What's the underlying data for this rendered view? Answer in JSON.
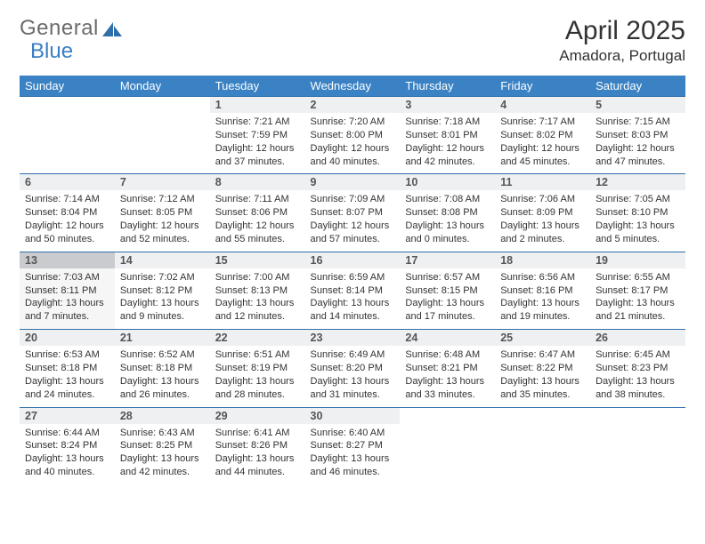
{
  "brand": {
    "part1": "General",
    "part2": "Blue"
  },
  "title": "April 2025",
  "location": "Amadora, Portugal",
  "colors": {
    "header_bg": "#3a82c4",
    "header_text": "#ffffff",
    "daynum_bg": "#eef0f2",
    "daynum_border": "#2f6fa8",
    "today_daynum_bg": "#c9cbce",
    "logo_gray": "#6b6b6b",
    "logo_blue": "#3a7fc4"
  },
  "weekdays": [
    "Sunday",
    "Monday",
    "Tuesday",
    "Wednesday",
    "Thursday",
    "Friday",
    "Saturday"
  ],
  "today": 13,
  "weeks": [
    [
      null,
      null,
      {
        "n": 1,
        "sr": "7:21 AM",
        "ss": "7:59 PM",
        "dl": "12 hours and 37 minutes."
      },
      {
        "n": 2,
        "sr": "7:20 AM",
        "ss": "8:00 PM",
        "dl": "12 hours and 40 minutes."
      },
      {
        "n": 3,
        "sr": "7:18 AM",
        "ss": "8:01 PM",
        "dl": "12 hours and 42 minutes."
      },
      {
        "n": 4,
        "sr": "7:17 AM",
        "ss": "8:02 PM",
        "dl": "12 hours and 45 minutes."
      },
      {
        "n": 5,
        "sr": "7:15 AM",
        "ss": "8:03 PM",
        "dl": "12 hours and 47 minutes."
      }
    ],
    [
      {
        "n": 6,
        "sr": "7:14 AM",
        "ss": "8:04 PM",
        "dl": "12 hours and 50 minutes."
      },
      {
        "n": 7,
        "sr": "7:12 AM",
        "ss": "8:05 PM",
        "dl": "12 hours and 52 minutes."
      },
      {
        "n": 8,
        "sr": "7:11 AM",
        "ss": "8:06 PM",
        "dl": "12 hours and 55 minutes."
      },
      {
        "n": 9,
        "sr": "7:09 AM",
        "ss": "8:07 PM",
        "dl": "12 hours and 57 minutes."
      },
      {
        "n": 10,
        "sr": "7:08 AM",
        "ss": "8:08 PM",
        "dl": "13 hours and 0 minutes."
      },
      {
        "n": 11,
        "sr": "7:06 AM",
        "ss": "8:09 PM",
        "dl": "13 hours and 2 minutes."
      },
      {
        "n": 12,
        "sr": "7:05 AM",
        "ss": "8:10 PM",
        "dl": "13 hours and 5 minutes."
      }
    ],
    [
      {
        "n": 13,
        "sr": "7:03 AM",
        "ss": "8:11 PM",
        "dl": "13 hours and 7 minutes."
      },
      {
        "n": 14,
        "sr": "7:02 AM",
        "ss": "8:12 PM",
        "dl": "13 hours and 9 minutes."
      },
      {
        "n": 15,
        "sr": "7:00 AM",
        "ss": "8:13 PM",
        "dl": "13 hours and 12 minutes."
      },
      {
        "n": 16,
        "sr": "6:59 AM",
        "ss": "8:14 PM",
        "dl": "13 hours and 14 minutes."
      },
      {
        "n": 17,
        "sr": "6:57 AM",
        "ss": "8:15 PM",
        "dl": "13 hours and 17 minutes."
      },
      {
        "n": 18,
        "sr": "6:56 AM",
        "ss": "8:16 PM",
        "dl": "13 hours and 19 minutes."
      },
      {
        "n": 19,
        "sr": "6:55 AM",
        "ss": "8:17 PM",
        "dl": "13 hours and 21 minutes."
      }
    ],
    [
      {
        "n": 20,
        "sr": "6:53 AM",
        "ss": "8:18 PM",
        "dl": "13 hours and 24 minutes."
      },
      {
        "n": 21,
        "sr": "6:52 AM",
        "ss": "8:18 PM",
        "dl": "13 hours and 26 minutes."
      },
      {
        "n": 22,
        "sr": "6:51 AM",
        "ss": "8:19 PM",
        "dl": "13 hours and 28 minutes."
      },
      {
        "n": 23,
        "sr": "6:49 AM",
        "ss": "8:20 PM",
        "dl": "13 hours and 31 minutes."
      },
      {
        "n": 24,
        "sr": "6:48 AM",
        "ss": "8:21 PM",
        "dl": "13 hours and 33 minutes."
      },
      {
        "n": 25,
        "sr": "6:47 AM",
        "ss": "8:22 PM",
        "dl": "13 hours and 35 minutes."
      },
      {
        "n": 26,
        "sr": "6:45 AM",
        "ss": "8:23 PM",
        "dl": "13 hours and 38 minutes."
      }
    ],
    [
      {
        "n": 27,
        "sr": "6:44 AM",
        "ss": "8:24 PM",
        "dl": "13 hours and 40 minutes."
      },
      {
        "n": 28,
        "sr": "6:43 AM",
        "ss": "8:25 PM",
        "dl": "13 hours and 42 minutes."
      },
      {
        "n": 29,
        "sr": "6:41 AM",
        "ss": "8:26 PM",
        "dl": "13 hours and 44 minutes."
      },
      {
        "n": 30,
        "sr": "6:40 AM",
        "ss": "8:27 PM",
        "dl": "13 hours and 46 minutes."
      },
      null,
      null,
      null
    ]
  ],
  "labels": {
    "sunrise": "Sunrise:",
    "sunset": "Sunset:",
    "daylight": "Daylight:"
  }
}
